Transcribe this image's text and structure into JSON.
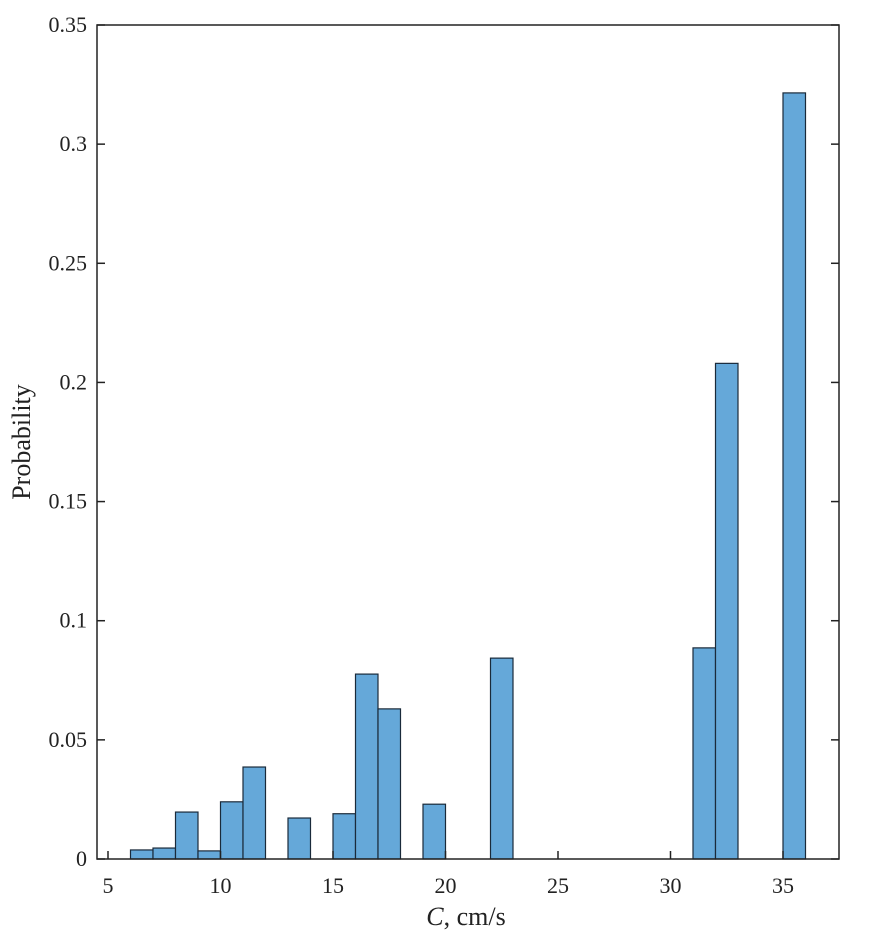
{
  "chart_data": {
    "type": "bar",
    "title": "",
    "xlabel_italic": "C",
    "xlabel_rest": ", cm/s",
    "ylabel": "Probability",
    "xlim": [
      5,
      37.5
    ],
    "ylim": [
      0,
      0.35
    ],
    "xticks": [
      5,
      10,
      15,
      20,
      25,
      30,
      35
    ],
    "xtick_labels": [
      "5",
      "10",
      "15",
      "20",
      "25",
      "30",
      "35"
    ],
    "yticks": [
      0,
      0.05,
      0.1,
      0.15,
      0.2,
      0.25,
      0.3,
      0.35
    ],
    "ytick_labels": [
      "0",
      "0.05",
      "0.1",
      "0.15",
      "0.2",
      "0.25",
      "0.3",
      "0.35"
    ],
    "bin_width": 1,
    "bins": [
      {
        "x0": 6,
        "value": 0.0038
      },
      {
        "x0": 7,
        "value": 0.0046
      },
      {
        "x0": 8,
        "value": 0.0197
      },
      {
        "x0": 9,
        "value": 0.0034
      },
      {
        "x0": 10,
        "value": 0.024
      },
      {
        "x0": 11,
        "value": 0.0386
      },
      {
        "x0": 13,
        "value": 0.0172
      },
      {
        "x0": 15,
        "value": 0.019
      },
      {
        "x0": 16,
        "value": 0.0776
      },
      {
        "x0": 17,
        "value": 0.063
      },
      {
        "x0": 19,
        "value": 0.023
      },
      {
        "x0": 22,
        "value": 0.0843
      },
      {
        "x0": 31,
        "value": 0.0886
      },
      {
        "x0": 32,
        "value": 0.208
      },
      {
        "x0": 35,
        "value": 0.3215
      }
    ],
    "bar_color": "#65A8D9",
    "edge_color": "#1A2A3A",
    "grid": false
  }
}
